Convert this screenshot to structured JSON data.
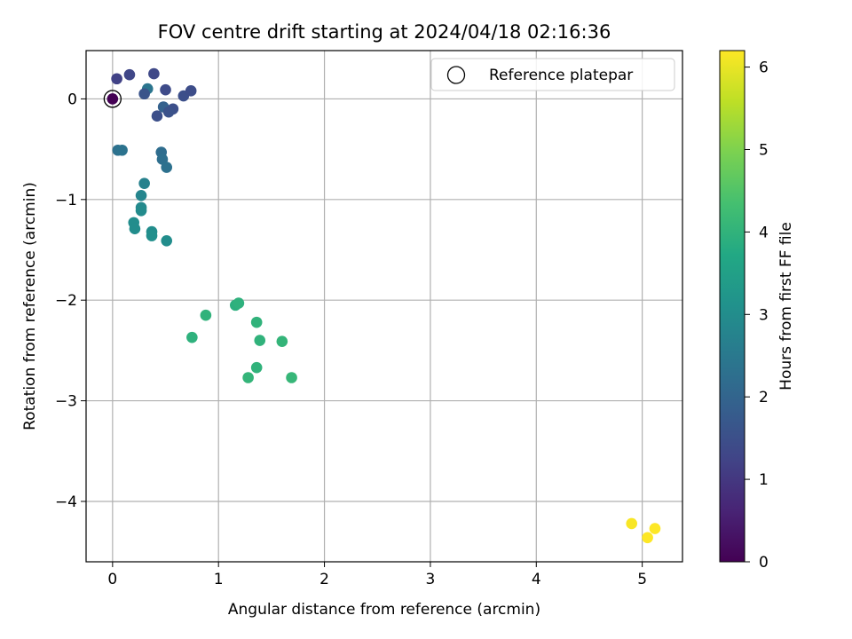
{
  "chart_data": {
    "type": "scatter",
    "title": "FOV centre drift starting at 2024/04/18 02:16:36",
    "xlabel": "Angular distance from reference (arcmin)",
    "ylabel": "Rotation from reference (arcmin)",
    "xlim": [
      -0.25,
      5.38
    ],
    "ylim": [
      -4.6,
      0.48
    ],
    "xticks": [
      0,
      1,
      2,
      3,
      4,
      5
    ],
    "yticks": [
      0,
      -1,
      -2,
      -3,
      -4
    ],
    "xtick_labels": [
      "0",
      "1",
      "2",
      "3",
      "4",
      "5"
    ],
    "ytick_labels": [
      "0",
      "−1",
      "−2",
      "−3",
      "−4"
    ],
    "grid": true,
    "legend": {
      "placement": "top-right",
      "entries": [
        "Reference platepar"
      ]
    },
    "colorbar": {
      "label": "Hours from first FF file",
      "range": [
        0,
        6.2
      ],
      "ticks": [
        0,
        1,
        2,
        3,
        4,
        5,
        6
      ],
      "tick_labels": [
        "0",
        "1",
        "2",
        "3",
        "4",
        "5",
        "6"
      ],
      "colormap": "viridis"
    },
    "reference_point": {
      "x": 0,
      "y": 0,
      "hours": 0
    },
    "points": [
      {
        "x": 0.04,
        "y": 0.2,
        "hours": 1.2
      },
      {
        "x": 0.16,
        "y": 0.24,
        "hours": 1.3
      },
      {
        "x": 0.39,
        "y": 0.25,
        "hours": 1.35
      },
      {
        "x": 0.33,
        "y": 0.1,
        "hours": 2.4
      },
      {
        "x": 0.3,
        "y": 0.05,
        "hours": 1.6
      },
      {
        "x": 0.5,
        "y": 0.09,
        "hours": 1.4
      },
      {
        "x": 0.67,
        "y": 0.03,
        "hours": 1.5
      },
      {
        "x": 0.74,
        "y": 0.08,
        "hours": 1.45
      },
      {
        "x": 0.48,
        "y": -0.08,
        "hours": 1.9
      },
      {
        "x": 0.57,
        "y": -0.1,
        "hours": 1.5
      },
      {
        "x": 0.53,
        "y": -0.13,
        "hours": 1.55
      },
      {
        "x": 0.42,
        "y": -0.17,
        "hours": 1.5
      },
      {
        "x": 0.05,
        "y": -0.51,
        "hours": 2.3
      },
      {
        "x": 0.09,
        "y": -0.51,
        "hours": 2.35
      },
      {
        "x": 0.46,
        "y": -0.53,
        "hours": 2.2
      },
      {
        "x": 0.47,
        "y": -0.6,
        "hours": 2.25
      },
      {
        "x": 0.51,
        "y": -0.68,
        "hours": 2.3
      },
      {
        "x": 0.3,
        "y": -0.84,
        "hours": 2.7
      },
      {
        "x": 0.27,
        "y": -0.96,
        "hours": 2.8
      },
      {
        "x": 0.27,
        "y": -1.08,
        "hours": 2.9
      },
      {
        "x": 0.27,
        "y": -1.11,
        "hours": 2.95
      },
      {
        "x": 0.2,
        "y": -1.23,
        "hours": 3.0
      },
      {
        "x": 0.21,
        "y": -1.29,
        "hours": 3.0
      },
      {
        "x": 0.37,
        "y": -1.32,
        "hours": 3.0
      },
      {
        "x": 0.37,
        "y": -1.36,
        "hours": 3.05
      },
      {
        "x": 0.51,
        "y": -1.41,
        "hours": 3.0
      },
      {
        "x": 1.16,
        "y": -2.05,
        "hours": 3.9
      },
      {
        "x": 1.19,
        "y": -2.03,
        "hours": 3.95
      },
      {
        "x": 0.88,
        "y": -2.15,
        "hours": 4.0
      },
      {
        "x": 1.36,
        "y": -2.22,
        "hours": 4.0
      },
      {
        "x": 0.75,
        "y": -2.37,
        "hours": 3.95
      },
      {
        "x": 1.39,
        "y": -2.4,
        "hours": 4.0
      },
      {
        "x": 1.6,
        "y": -2.41,
        "hours": 4.05
      },
      {
        "x": 1.36,
        "y": -2.67,
        "hours": 4.0
      },
      {
        "x": 1.28,
        "y": -2.77,
        "hours": 4.05
      },
      {
        "x": 1.69,
        "y": -2.77,
        "hours": 4.1
      },
      {
        "x": 4.9,
        "y": -4.22,
        "hours": 6.15
      },
      {
        "x": 5.12,
        "y": -4.27,
        "hours": 6.2
      },
      {
        "x": 5.05,
        "y": -4.36,
        "hours": 6.2
      }
    ]
  }
}
